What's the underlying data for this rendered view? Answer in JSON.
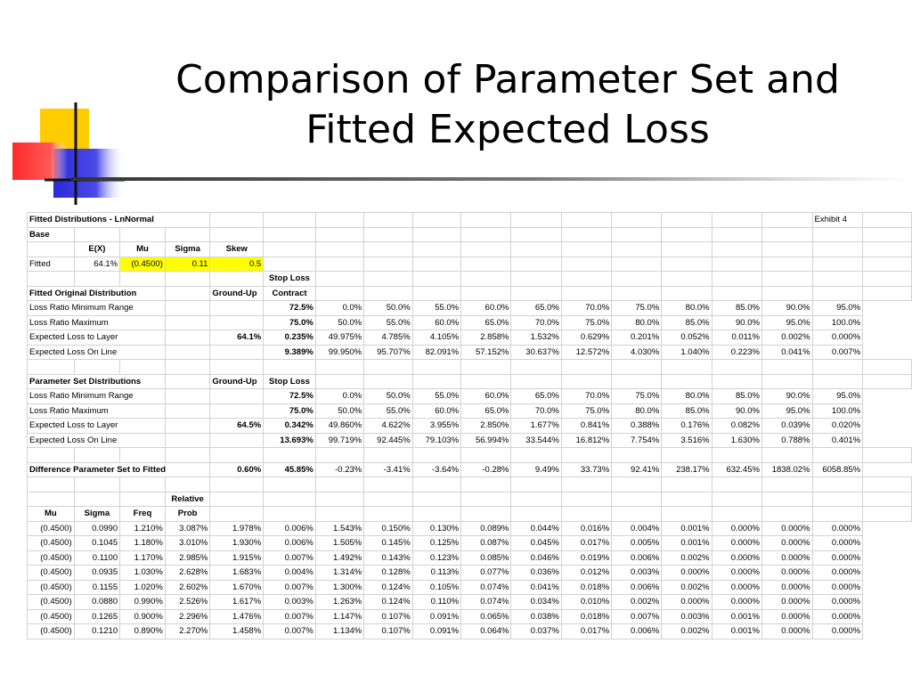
{
  "slide": {
    "title_line1": "Comparison of Parameter Set and",
    "title_line2": "Fitted Expected Loss"
  },
  "colors": {
    "logo_yellow": "#ffcc00",
    "logo_red": "#ff3333",
    "logo_blue": "#3333dd",
    "highlight": "#ffff00"
  },
  "sheet_rows": [
    [
      {
        "t": "Fitted Distributions - LnNormal",
        "b": 1,
        "a": "l",
        "s": 4
      },
      {
        "t": ""
      },
      {
        "t": ""
      },
      {
        "t": ""
      },
      {
        "t": ""
      },
      {
        "t": ""
      },
      {
        "t": ""
      },
      {
        "t": ""
      },
      {
        "t": ""
      },
      {
        "t": ""
      },
      {
        "t": ""
      },
      {
        "t": ""
      },
      {
        "t": ""
      },
      {
        "t": "Exhibit 4",
        "a": "l"
      },
      {
        "t": ""
      }
    ],
    [
      {
        "t": "Base",
        "b": 1,
        "a": "l"
      },
      {
        "t": ""
      },
      {
        "t": ""
      },
      {
        "t": ""
      },
      {
        "t": ""
      },
      {
        "t": ""
      },
      {
        "t": ""
      },
      {
        "t": ""
      },
      {
        "t": ""
      },
      {
        "t": ""
      },
      {
        "t": ""
      },
      {
        "t": ""
      },
      {
        "t": ""
      },
      {
        "t": ""
      },
      {
        "t": ""
      },
      {
        "t": ""
      },
      {
        "t": ""
      },
      {
        "t": ""
      }
    ],
    [
      {
        "t": ""
      },
      {
        "t": "E(X)",
        "b": 1,
        "a": "c"
      },
      {
        "t": "Mu",
        "b": 1,
        "a": "c"
      },
      {
        "t": "Sigma",
        "b": 1,
        "a": "c"
      },
      {
        "t": "Skew",
        "b": 1,
        "a": "c"
      },
      {
        "t": ""
      },
      {
        "t": ""
      },
      {
        "t": ""
      },
      {
        "t": ""
      },
      {
        "t": ""
      },
      {
        "t": ""
      },
      {
        "t": ""
      },
      {
        "t": ""
      },
      {
        "t": ""
      },
      {
        "t": ""
      },
      {
        "t": ""
      },
      {
        "t": ""
      },
      {
        "t": ""
      }
    ],
    [
      {
        "t": "Fitted",
        "a": "l"
      },
      {
        "t": "64.1%"
      },
      {
        "t": "(0.4500)",
        "h": 1
      },
      {
        "t": "0.11",
        "h": 1
      },
      {
        "t": "0.5",
        "h": 1
      },
      {
        "t": ""
      },
      {
        "t": ""
      },
      {
        "t": ""
      },
      {
        "t": ""
      },
      {
        "t": ""
      },
      {
        "t": ""
      },
      {
        "t": ""
      },
      {
        "t": ""
      },
      {
        "t": ""
      },
      {
        "t": ""
      },
      {
        "t": ""
      },
      {
        "t": ""
      },
      {
        "t": ""
      }
    ],
    [
      {
        "t": ""
      },
      {
        "t": ""
      },
      {
        "t": ""
      },
      {
        "t": ""
      },
      {
        "t": ""
      },
      {
        "t": "Stop Loss",
        "b": 1,
        "a": "c"
      },
      {
        "t": ""
      },
      {
        "t": ""
      },
      {
        "t": ""
      },
      {
        "t": ""
      },
      {
        "t": ""
      },
      {
        "t": ""
      },
      {
        "t": ""
      },
      {
        "t": ""
      },
      {
        "t": ""
      },
      {
        "t": ""
      },
      {
        "t": ""
      },
      {
        "t": ""
      }
    ],
    [
      {
        "t": "Fitted Original Distribution",
        "b": 1,
        "a": "l",
        "s": 3
      },
      {
        "t": ""
      },
      {
        "t": "Ground-Up",
        "b": 1,
        "a": "l"
      },
      {
        "t": "Contract",
        "b": 1,
        "a": "c"
      },
      {
        "t": ""
      },
      {
        "t": ""
      },
      {
        "t": ""
      },
      {
        "t": ""
      },
      {
        "t": ""
      },
      {
        "t": ""
      },
      {
        "t": ""
      },
      {
        "t": ""
      },
      {
        "t": ""
      },
      {
        "t": ""
      },
      {
        "t": ""
      },
      {
        "t": ""
      }
    ],
    [
      {
        "t": "Loss Ratio Minimum Range",
        "a": "l",
        "s": 3
      },
      {
        "t": ""
      },
      {
        "t": ""
      },
      {
        "t": "72.5%",
        "b": 1
      },
      {
        "t": "0.0%"
      },
      {
        "t": "50.0%"
      },
      {
        "t": "55.0%"
      },
      {
        "t": "60.0%"
      },
      {
        "t": "65.0%"
      },
      {
        "t": "70.0%"
      },
      {
        "t": "75.0%"
      },
      {
        "t": "80.0%"
      },
      {
        "t": "85.0%"
      },
      {
        "t": "90.0%"
      },
      {
        "t": "95.0%"
      }
    ],
    [
      {
        "t": "Loss Ratio Maximum",
        "a": "l",
        "s": 3
      },
      {
        "t": ""
      },
      {
        "t": ""
      },
      {
        "t": "75.0%",
        "b": 1
      },
      {
        "t": "50.0%"
      },
      {
        "t": "55.0%"
      },
      {
        "t": "60.0%"
      },
      {
        "t": "65.0%"
      },
      {
        "t": "70.0%"
      },
      {
        "t": "75.0%"
      },
      {
        "t": "80.0%"
      },
      {
        "t": "85.0%"
      },
      {
        "t": "90.0%"
      },
      {
        "t": "95.0%"
      },
      {
        "t": "100.0%"
      }
    ],
    [
      {
        "t": "Expected Loss to Layer",
        "a": "l",
        "s": 3
      },
      {
        "t": ""
      },
      {
        "t": "64.1%",
        "b": 1
      },
      {
        "t": "0.235%",
        "b": 1
      },
      {
        "t": "49.975%"
      },
      {
        "t": "4.785%"
      },
      {
        "t": "4.105%"
      },
      {
        "t": "2.858%"
      },
      {
        "t": "1.532%"
      },
      {
        "t": "0.629%"
      },
      {
        "t": "0.201%"
      },
      {
        "t": "0.052%"
      },
      {
        "t": "0.011%"
      },
      {
        "t": "0.002%"
      },
      {
        "t": "0.000%"
      }
    ],
    [
      {
        "t": "Expected Loss On Line",
        "a": "l",
        "s": 3
      },
      {
        "t": ""
      },
      {
        "t": ""
      },
      {
        "t": "9.389%",
        "b": 1
      },
      {
        "t": "99.950%"
      },
      {
        "t": "95.707%"
      },
      {
        "t": "82.091%"
      },
      {
        "t": "57.152%"
      },
      {
        "t": "30.637%"
      },
      {
        "t": "12.572%"
      },
      {
        "t": "4.030%"
      },
      {
        "t": "1.040%"
      },
      {
        "t": "0.223%"
      },
      {
        "t": "0.041%"
      },
      {
        "t": "0.007%"
      }
    ],
    [
      {
        "t": ""
      },
      {
        "t": ""
      },
      {
        "t": ""
      },
      {
        "t": ""
      },
      {
        "t": ""
      },
      {
        "t": ""
      },
      {
        "t": ""
      },
      {
        "t": ""
      },
      {
        "t": ""
      },
      {
        "t": ""
      },
      {
        "t": ""
      },
      {
        "t": ""
      },
      {
        "t": ""
      },
      {
        "t": ""
      },
      {
        "t": ""
      },
      {
        "t": ""
      },
      {
        "t": ""
      },
      {
        "t": ""
      }
    ],
    [
      {
        "t": "Parameter Set Distributions",
        "b": 1,
        "a": "l",
        "s": 3
      },
      {
        "t": ""
      },
      {
        "t": "Ground-Up",
        "b": 1,
        "a": "l"
      },
      {
        "t": "Stop Loss",
        "b": 1,
        "a": "c"
      },
      {
        "t": ""
      },
      {
        "t": ""
      },
      {
        "t": ""
      },
      {
        "t": ""
      },
      {
        "t": ""
      },
      {
        "t": ""
      },
      {
        "t": ""
      },
      {
        "t": ""
      },
      {
        "t": ""
      },
      {
        "t": ""
      },
      {
        "t": ""
      },
      {
        "t": ""
      }
    ],
    [
      {
        "t": "Loss Ratio Minimum Range",
        "a": "l",
        "s": 3
      },
      {
        "t": ""
      },
      {
        "t": ""
      },
      {
        "t": "72.5%",
        "b": 1
      },
      {
        "t": "0.0%"
      },
      {
        "t": "50.0%"
      },
      {
        "t": "55.0%"
      },
      {
        "t": "60.0%"
      },
      {
        "t": "65.0%"
      },
      {
        "t": "70.0%"
      },
      {
        "t": "75.0%"
      },
      {
        "t": "80.0%"
      },
      {
        "t": "85.0%"
      },
      {
        "t": "90.0%"
      },
      {
        "t": "95.0%"
      }
    ],
    [
      {
        "t": "Loss Ratio Maximum",
        "a": "l",
        "s": 3
      },
      {
        "t": ""
      },
      {
        "t": ""
      },
      {
        "t": "75.0%",
        "b": 1
      },
      {
        "t": "50.0%"
      },
      {
        "t": "55.0%"
      },
      {
        "t": "60.0%"
      },
      {
        "t": "65.0%"
      },
      {
        "t": "70.0%"
      },
      {
        "t": "75.0%"
      },
      {
        "t": "80.0%"
      },
      {
        "t": "85.0%"
      },
      {
        "t": "90.0%"
      },
      {
        "t": "95.0%"
      },
      {
        "t": "100.0%"
      }
    ],
    [
      {
        "t": "Expected Loss to Layer",
        "a": "l",
        "s": 3
      },
      {
        "t": ""
      },
      {
        "t": "64.5%",
        "b": 1
      },
      {
        "t": "0.342%",
        "b": 1
      },
      {
        "t": "49.860%"
      },
      {
        "t": "4.622%"
      },
      {
        "t": "3.955%"
      },
      {
        "t": "2.850%"
      },
      {
        "t": "1.677%"
      },
      {
        "t": "0.841%"
      },
      {
        "t": "0.388%"
      },
      {
        "t": "0.176%"
      },
      {
        "t": "0.082%"
      },
      {
        "t": "0.039%"
      },
      {
        "t": "0.020%"
      }
    ],
    [
      {
        "t": "Expected Loss On Line",
        "a": "l",
        "s": 3
      },
      {
        "t": ""
      },
      {
        "t": ""
      },
      {
        "t": "13.693%",
        "b": 1
      },
      {
        "t": "99.719%"
      },
      {
        "t": "92.445%"
      },
      {
        "t": "79.103%"
      },
      {
        "t": "56.994%"
      },
      {
        "t": "33.544%"
      },
      {
        "t": "16.812%"
      },
      {
        "t": "7.754%"
      },
      {
        "t": "3.516%"
      },
      {
        "t": "1.630%"
      },
      {
        "t": "0.788%"
      },
      {
        "t": "0.401%"
      }
    ],
    [
      {
        "t": ""
      },
      {
        "t": ""
      },
      {
        "t": ""
      },
      {
        "t": ""
      },
      {
        "t": ""
      },
      {
        "t": ""
      },
      {
        "t": ""
      },
      {
        "t": ""
      },
      {
        "t": ""
      },
      {
        "t": ""
      },
      {
        "t": ""
      },
      {
        "t": ""
      },
      {
        "t": ""
      },
      {
        "t": ""
      },
      {
        "t": ""
      },
      {
        "t": ""
      },
      {
        "t": ""
      },
      {
        "t": ""
      }
    ],
    [
      {
        "t": "Difference Parameter Set to Fitted",
        "b": 1,
        "a": "l",
        "s": 4
      },
      {
        "t": "0.60%",
        "b": 1
      },
      {
        "t": "45.85%",
        "b": 1
      },
      {
        "t": "-0.23%"
      },
      {
        "t": "-3.41%"
      },
      {
        "t": "-3.64%"
      },
      {
        "t": "-0.28%"
      },
      {
        "t": "9.49%"
      },
      {
        "t": "33.73%"
      },
      {
        "t": "92.41%"
      },
      {
        "t": "238.17%"
      },
      {
        "t": "632.45%"
      },
      {
        "t": "1838.02%"
      },
      {
        "t": "6058.85%"
      }
    ],
    [
      {
        "t": ""
      },
      {
        "t": ""
      },
      {
        "t": ""
      },
      {
        "t": ""
      },
      {
        "t": ""
      },
      {
        "t": ""
      },
      {
        "t": ""
      },
      {
        "t": ""
      },
      {
        "t": ""
      },
      {
        "t": ""
      },
      {
        "t": ""
      },
      {
        "t": ""
      },
      {
        "t": ""
      },
      {
        "t": ""
      },
      {
        "t": ""
      },
      {
        "t": ""
      },
      {
        "t": ""
      },
      {
        "t": ""
      }
    ],
    [
      {
        "t": ""
      },
      {
        "t": ""
      },
      {
        "t": ""
      },
      {
        "t": "Relative",
        "b": 1,
        "a": "c"
      },
      {
        "t": ""
      },
      {
        "t": ""
      },
      {
        "t": ""
      },
      {
        "t": ""
      },
      {
        "t": ""
      },
      {
        "t": ""
      },
      {
        "t": ""
      },
      {
        "t": ""
      },
      {
        "t": ""
      },
      {
        "t": ""
      },
      {
        "t": ""
      },
      {
        "t": ""
      },
      {
        "t": ""
      },
      {
        "t": ""
      }
    ],
    [
      {
        "t": "Mu",
        "b": 1,
        "a": "c"
      },
      {
        "t": "Sigma",
        "b": 1,
        "a": "c"
      },
      {
        "t": "Freq",
        "b": 1,
        "a": "c"
      },
      {
        "t": "Prob",
        "b": 1,
        "a": "c"
      },
      {
        "t": ""
      },
      {
        "t": ""
      },
      {
        "t": ""
      },
      {
        "t": ""
      },
      {
        "t": ""
      },
      {
        "t": ""
      },
      {
        "t": ""
      },
      {
        "t": ""
      },
      {
        "t": ""
      },
      {
        "t": ""
      },
      {
        "t": ""
      },
      {
        "t": ""
      },
      {
        "t": ""
      },
      {
        "t": ""
      }
    ],
    [
      {
        "t": "(0.4500)"
      },
      {
        "t": "0.0990"
      },
      {
        "t": "1.210%"
      },
      {
        "t": "3.087%"
      },
      {
        "t": "1.978%"
      },
      {
        "t": "0.006%"
      },
      {
        "t": "1.543%"
      },
      {
        "t": "0.150%"
      },
      {
        "t": "0.130%"
      },
      {
        "t": "0.089%"
      },
      {
        "t": "0.044%"
      },
      {
        "t": "0.016%"
      },
      {
        "t": "0.004%"
      },
      {
        "t": "0.001%"
      },
      {
        "t": "0.000%"
      },
      {
        "t": "0.000%"
      },
      {
        "t": "0.000%"
      }
    ],
    [
      {
        "t": "(0.4500)"
      },
      {
        "t": "0.1045"
      },
      {
        "t": "1.180%"
      },
      {
        "t": "3.010%"
      },
      {
        "t": "1.930%"
      },
      {
        "t": "0.006%"
      },
      {
        "t": "1.505%"
      },
      {
        "t": "0.145%"
      },
      {
        "t": "0.125%"
      },
      {
        "t": "0.087%"
      },
      {
        "t": "0.045%"
      },
      {
        "t": "0.017%"
      },
      {
        "t": "0.005%"
      },
      {
        "t": "0.001%"
      },
      {
        "t": "0.000%"
      },
      {
        "t": "0.000%"
      },
      {
        "t": "0.000%"
      }
    ],
    [
      {
        "t": "(0.4500)"
      },
      {
        "t": "0.1100"
      },
      {
        "t": "1.170%"
      },
      {
        "t": "2.985%"
      },
      {
        "t": "1.915%"
      },
      {
        "t": "0.007%"
      },
      {
        "t": "1.492%"
      },
      {
        "t": "0.143%"
      },
      {
        "t": "0.123%"
      },
      {
        "t": "0.085%"
      },
      {
        "t": "0.046%"
      },
      {
        "t": "0.019%"
      },
      {
        "t": "0.006%"
      },
      {
        "t": "0.002%"
      },
      {
        "t": "0.000%"
      },
      {
        "t": "0.000%"
      },
      {
        "t": "0.000%"
      }
    ],
    [
      {
        "t": "(0.4500)"
      },
      {
        "t": "0.0935"
      },
      {
        "t": "1.030%"
      },
      {
        "t": "2.628%"
      },
      {
        "t": "1.683%"
      },
      {
        "t": "0.004%"
      },
      {
        "t": "1.314%"
      },
      {
        "t": "0.128%"
      },
      {
        "t": "0.113%"
      },
      {
        "t": "0.077%"
      },
      {
        "t": "0.036%"
      },
      {
        "t": "0.012%"
      },
      {
        "t": "0.003%"
      },
      {
        "t": "0.000%"
      },
      {
        "t": "0.000%"
      },
      {
        "t": "0.000%"
      },
      {
        "t": "0.000%"
      }
    ],
    [
      {
        "t": "(0.4500)"
      },
      {
        "t": "0.1155"
      },
      {
        "t": "1.020%"
      },
      {
        "t": "2.602%"
      },
      {
        "t": "1.670%"
      },
      {
        "t": "0.007%"
      },
      {
        "t": "1.300%"
      },
      {
        "t": "0.124%"
      },
      {
        "t": "0.105%"
      },
      {
        "t": "0.074%"
      },
      {
        "t": "0.041%"
      },
      {
        "t": "0.018%"
      },
      {
        "t": "0.006%"
      },
      {
        "t": "0.002%"
      },
      {
        "t": "0.000%"
      },
      {
        "t": "0.000%"
      },
      {
        "t": "0.000%"
      }
    ],
    [
      {
        "t": "(0.4500)"
      },
      {
        "t": "0.0880"
      },
      {
        "t": "0.990%"
      },
      {
        "t": "2.526%"
      },
      {
        "t": "1.617%"
      },
      {
        "t": "0.003%"
      },
      {
        "t": "1.263%"
      },
      {
        "t": "0.124%"
      },
      {
        "t": "0.110%"
      },
      {
        "t": "0.074%"
      },
      {
        "t": "0.034%"
      },
      {
        "t": "0.010%"
      },
      {
        "t": "0.002%"
      },
      {
        "t": "0.000%"
      },
      {
        "t": "0.000%"
      },
      {
        "t": "0.000%"
      },
      {
        "t": "0.000%"
      }
    ],
    [
      {
        "t": "(0.4500)"
      },
      {
        "t": "0.1265"
      },
      {
        "t": "0.900%"
      },
      {
        "t": "2.296%"
      },
      {
        "t": "1.476%"
      },
      {
        "t": "0.007%"
      },
      {
        "t": "1.147%"
      },
      {
        "t": "0.107%"
      },
      {
        "t": "0.091%"
      },
      {
        "t": "0.065%"
      },
      {
        "t": "0.038%"
      },
      {
        "t": "0.018%"
      },
      {
        "t": "0.007%"
      },
      {
        "t": "0.003%"
      },
      {
        "t": "0.001%"
      },
      {
        "t": "0.000%"
      },
      {
        "t": "0.000%"
      }
    ],
    [
      {
        "t": "(0.4500)"
      },
      {
        "t": "0.1210"
      },
      {
        "t": "0.890%"
      },
      {
        "t": "2.270%"
      },
      {
        "t": "1.458%"
      },
      {
        "t": "0.007%"
      },
      {
        "t": "1.134%"
      },
      {
        "t": "0.107%"
      },
      {
        "t": "0.091%"
      },
      {
        "t": "0.064%"
      },
      {
        "t": "0.037%"
      },
      {
        "t": "0.017%"
      },
      {
        "t": "0.006%"
      },
      {
        "t": "0.002%"
      },
      {
        "t": "0.001%"
      },
      {
        "t": "0.000%"
      },
      {
        "t": "0.000%"
      }
    ]
  ]
}
